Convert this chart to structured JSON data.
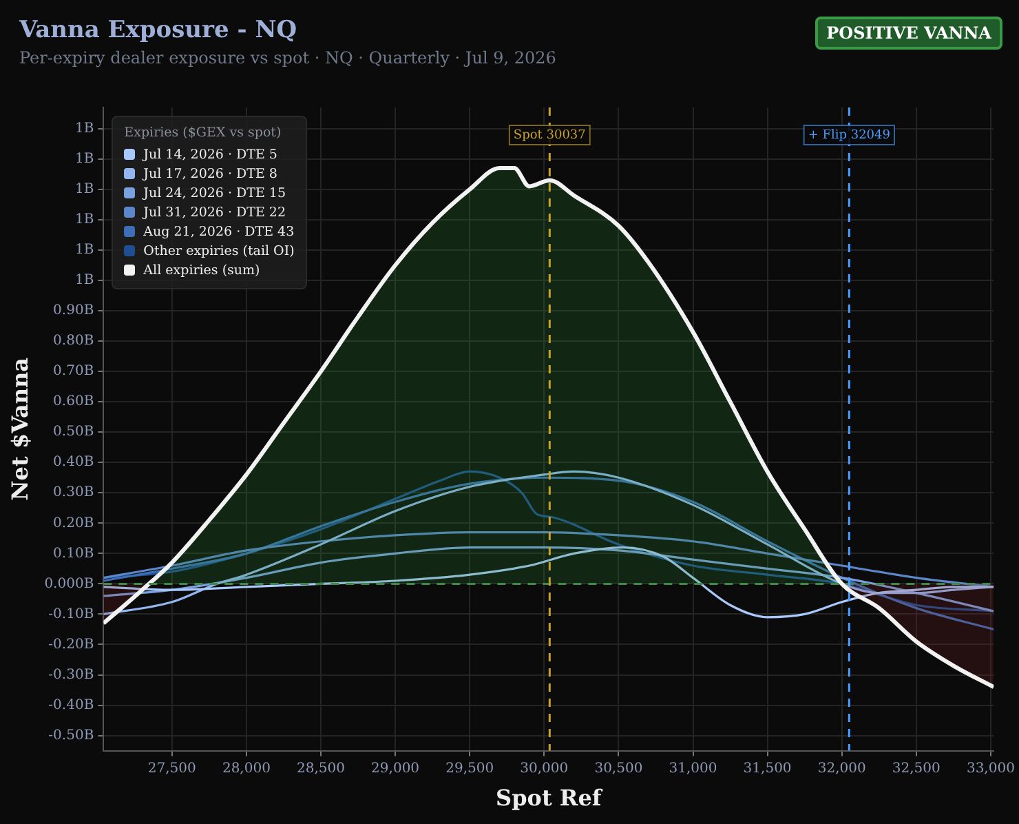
{
  "chart_data": {
    "type": "line",
    "title": "Vanna Exposure - NQ",
    "subtitle": "Per-expiry dealer exposure vs spot · NQ · Quarterly · Jul 9, 2026",
    "xlabel": "Spot Ref",
    "ylabel": "Net $Vanna",
    "legend_title": "Expiries ($GEX vs spot)",
    "annotations": [
      "POSITIVE VANNA"
    ],
    "xlim": [
      27040,
      33020
    ],
    "xticks": [
      {
        "value": 27500,
        "label": "27,500"
      },
      {
        "value": 28000,
        "label": "28,000"
      },
      {
        "value": 28500,
        "label": "28,500"
      },
      {
        "value": 29000,
        "label": "29,000"
      },
      {
        "value": 29500,
        "label": "29,500"
      },
      {
        "value": 30000,
        "label": "30,000"
      },
      {
        "value": 30500,
        "label": "30,500"
      },
      {
        "value": 31000,
        "label": "31,000"
      },
      {
        "value": 31500,
        "label": "31,500"
      },
      {
        "value": 32000,
        "label": "32,000"
      },
      {
        "value": 32500,
        "label": "32,500"
      },
      {
        "value": 33000,
        "label": "33,000"
      }
    ],
    "ylim": [
      -0.55,
      1.57
    ],
    "yticks": [
      {
        "value": -0.5,
        "label": "-0.50B"
      },
      {
        "value": -0.4,
        "label": "-0.40B"
      },
      {
        "value": -0.3,
        "label": "-0.30B"
      },
      {
        "value": -0.2,
        "label": "-0.20B"
      },
      {
        "value": -0.1,
        "label": "-0.10B"
      },
      {
        "value": 0,
        "label": "0.000B"
      },
      {
        "value": 0.1,
        "label": "0.10B"
      },
      {
        "value": 0.2,
        "label": "0.20B"
      },
      {
        "value": 0.3,
        "label": "0.30B"
      },
      {
        "value": 0.4,
        "label": "0.40B"
      },
      {
        "value": 0.5,
        "label": "0.50B"
      },
      {
        "value": 0.6,
        "label": "0.60B"
      },
      {
        "value": 0.7,
        "label": "0.70B"
      },
      {
        "value": 0.8,
        "label": "0.80B"
      },
      {
        "value": 0.9,
        "label": "0.90B"
      },
      {
        "value": 1.0,
        "label": "1B"
      },
      {
        "value": 1.1,
        "label": "1B"
      },
      {
        "value": 1.2,
        "label": "1B"
      },
      {
        "value": 1.3,
        "label": "1B"
      },
      {
        "value": 1.4,
        "label": "1B"
      },
      {
        "value": 1.5,
        "label": "1B"
      }
    ],
    "grid": true,
    "legend": "top left",
    "marker": "none",
    "line_style": "solid",
    "ref_lines": [
      {
        "axis": "y",
        "value": 0,
        "color": "#3f8a4a",
        "line_style": "dashed"
      },
      {
        "axis": "x",
        "value": 30037,
        "label": "Spot 30037",
        "color": "#c9a227",
        "line_style": "dashed"
      },
      {
        "axis": "x",
        "value": 32049,
        "label": "+ Flip 32049",
        "color": "#4a9eff",
        "line_style": "dashed"
      }
    ],
    "series": [
      {
        "name": "Jul 14, 2026 · DTE 5",
        "color": "#aac9fb",
        "x": [
          27040,
          27500,
          28000,
          28500,
          29000,
          29500,
          29900,
          30200,
          30530,
          30800,
          31000,
          31250,
          31500,
          31750,
          32000,
          32250,
          32500,
          32750,
          33020
        ],
        "values": [
          -0.01,
          -0.02,
          -0.01,
          0.0,
          0.01,
          0.03,
          0.06,
          0.1,
          0.12,
          0.09,
          0.02,
          -0.07,
          -0.11,
          -0.1,
          -0.06,
          -0.03,
          -0.02,
          -0.01,
          -0.01
        ]
      },
      {
        "name": "Jul 17, 2026 · DTE 8",
        "color": "#93b6ef",
        "x": [
          27040,
          27500,
          27800,
          28000,
          28500,
          29000,
          29500,
          30000,
          30200,
          30500,
          31000,
          31500,
          32000,
          32250,
          32500,
          32750,
          33020
        ],
        "values": [
          -0.1,
          -0.06,
          0.0,
          0.03,
          0.13,
          0.24,
          0.32,
          0.36,
          0.37,
          0.35,
          0.26,
          0.13,
          0.0,
          -0.03,
          -0.03,
          -0.02,
          -0.01
        ]
      },
      {
        "name": "Jul 24, 2026 · DTE 15",
        "color": "#7aa0de",
        "x": [
          27040,
          27500,
          28000,
          28500,
          29000,
          29500,
          30000,
          30500,
          31000,
          31500,
          32000,
          32500,
          33020
        ],
        "values": [
          -0.04,
          -0.02,
          0.02,
          0.07,
          0.1,
          0.12,
          0.12,
          0.11,
          0.08,
          0.05,
          0.02,
          -0.03,
          -0.09
        ]
      },
      {
        "name": "Jul 31, 2026 · DTE 22",
        "color": "#5b86c9",
        "x": [
          27040,
          27500,
          28000,
          28500,
          29000,
          29500,
          30000,
          30500,
          31000,
          31500,
          32000,
          32500,
          33020
        ],
        "values": [
          0.02,
          0.06,
          0.11,
          0.14,
          0.16,
          0.17,
          0.17,
          0.16,
          0.14,
          0.1,
          0.06,
          0.02,
          -0.01
        ]
      },
      {
        "name": "Aug 21, 2026 · DTE 43",
        "color": "#3e6fb6",
        "x": [
          27040,
          27500,
          28000,
          28500,
          29000,
          29500,
          30000,
          30500,
          31000,
          31500,
          32000,
          32500,
          33020
        ],
        "values": [
          0.01,
          0.05,
          0.1,
          0.19,
          0.27,
          0.33,
          0.35,
          0.34,
          0.27,
          0.14,
          0.02,
          -0.08,
          -0.15
        ]
      },
      {
        "name": "Other expiries (tail OI)",
        "color": "#1f4f92",
        "x": [
          27040,
          27500,
          28000,
          28500,
          29000,
          29300,
          29500,
          29700,
          29850,
          29950,
          30050,
          30500,
          31000,
          31500,
          32000,
          32500,
          33020
        ],
        "values": [
          0.02,
          0.04,
          0.1,
          0.18,
          0.28,
          0.34,
          0.37,
          0.35,
          0.3,
          0.23,
          0.22,
          0.13,
          0.06,
          0.03,
          0.0,
          -0.07,
          -0.09
        ]
      },
      {
        "name": "All expiries (sum)",
        "color": "#f2f2f2",
        "type": "area",
        "x": [
          27040,
          27300,
          27500,
          27750,
          28000,
          28250,
          28500,
          28750,
          29000,
          29250,
          29500,
          29700,
          29800,
          29900,
          30037,
          30200,
          30500,
          30700,
          31000,
          31250,
          31500,
          31750,
          32000,
          32250,
          32500,
          32750,
          33020
        ],
        "values": [
          -0.13,
          -0.02,
          0.07,
          0.21,
          0.36,
          0.53,
          0.7,
          0.88,
          1.05,
          1.19,
          1.3,
          1.37,
          1.37,
          1.31,
          1.33,
          1.28,
          1.18,
          1.06,
          0.83,
          0.6,
          0.37,
          0.18,
          0.0,
          -0.08,
          -0.19,
          -0.27,
          -0.34
        ]
      }
    ]
  }
}
